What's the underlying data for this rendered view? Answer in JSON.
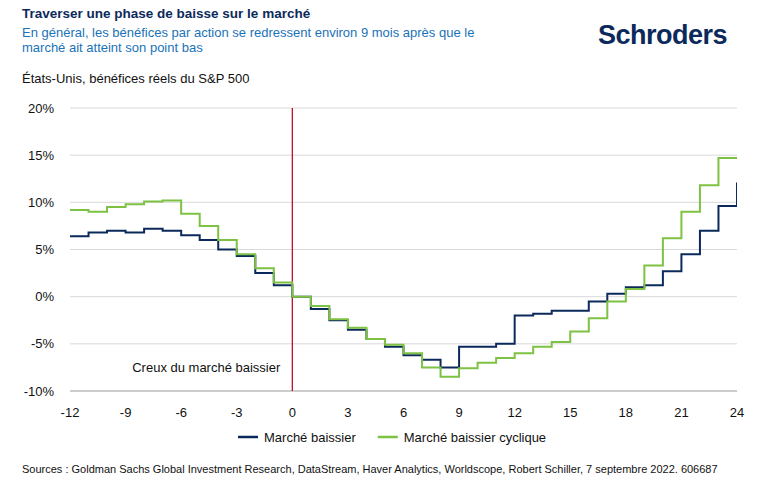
{
  "chart_data": {
    "type": "line",
    "title": "Traverser une phase de baisse sur le marché",
    "subtitle": "En général, les bénéfices par action se redressent environ 9 mois après que le marché ait atteint son point bas",
    "y_label": "États-Unis, bénéfices réels du S&P 500",
    "logo": "Schroders",
    "source": "Sources : Goldman Sachs Global Investment Research, DataStream, Haver Analytics, Worldscope, Robert Schiller, 7 septembre 2022. 606687",
    "annotations": [
      {
        "text": "Creux du marché baissier",
        "x": 0,
        "color": "#c0102a"
      }
    ],
    "x": [
      -12,
      -11,
      -10,
      -9,
      -8,
      -7,
      -6,
      -5,
      -4,
      -3,
      -2,
      -1,
      0,
      1,
      2,
      3,
      4,
      5,
      6,
      7,
      8,
      9,
      10,
      11,
      12,
      13,
      14,
      15,
      16,
      17,
      18,
      19,
      20,
      21,
      22,
      23,
      24
    ],
    "xlim": [
      -12,
      24
    ],
    "xticks": [
      -12,
      -9,
      -6,
      -3,
      0,
      3,
      6,
      9,
      12,
      15,
      18,
      21,
      24
    ],
    "ylim": [
      -10,
      20
    ],
    "yticks": [
      {
        "value": -10,
        "label": "-10%"
      },
      {
        "value": -5,
        "label": "-5%"
      },
      {
        "value": 0,
        "label": "0%"
      },
      {
        "value": 5,
        "label": "5%"
      },
      {
        "value": 10,
        "label": "10%"
      },
      {
        "value": 15,
        "label": "15%"
      },
      {
        "value": 20,
        "label": "20%"
      }
    ],
    "grid": true,
    "legend": "bottom",
    "line_style": "step",
    "series": [
      {
        "name": "Marché baissier",
        "color": "#0b2a5b",
        "values": [
          6.4,
          6.8,
          7.0,
          6.8,
          7.2,
          7.0,
          6.5,
          6.0,
          5.0,
          4.3,
          2.5,
          1.2,
          0,
          -1.3,
          -2.5,
          -3.5,
          -4.5,
          -5.3,
          -6.2,
          -6.7,
          -7.5,
          -5.3,
          -5.3,
          -5.0,
          -2.0,
          -1.8,
          -1.5,
          -1.5,
          -0.5,
          0.3,
          1.0,
          1.2,
          2.7,
          4.5,
          7.0,
          9.6,
          12.1
        ]
      },
      {
        "name": "Marché baissier cyclique",
        "color": "#7dc242",
        "values": [
          9.2,
          9.0,
          9.5,
          9.8,
          10.1,
          10.2,
          8.8,
          7.5,
          6.0,
          4.5,
          3.0,
          1.5,
          0,
          -1.0,
          -2.4,
          -3.3,
          -4.5,
          -5.1,
          -6.0,
          -7.5,
          -8.5,
          -7.6,
          -7.0,
          -6.5,
          -6.0,
          -5.3,
          -4.8,
          -3.7,
          -2.3,
          -0.5,
          0.8,
          3.3,
          6.2,
          9.0,
          11.8,
          14.7,
          14.7
        ]
      }
    ]
  }
}
